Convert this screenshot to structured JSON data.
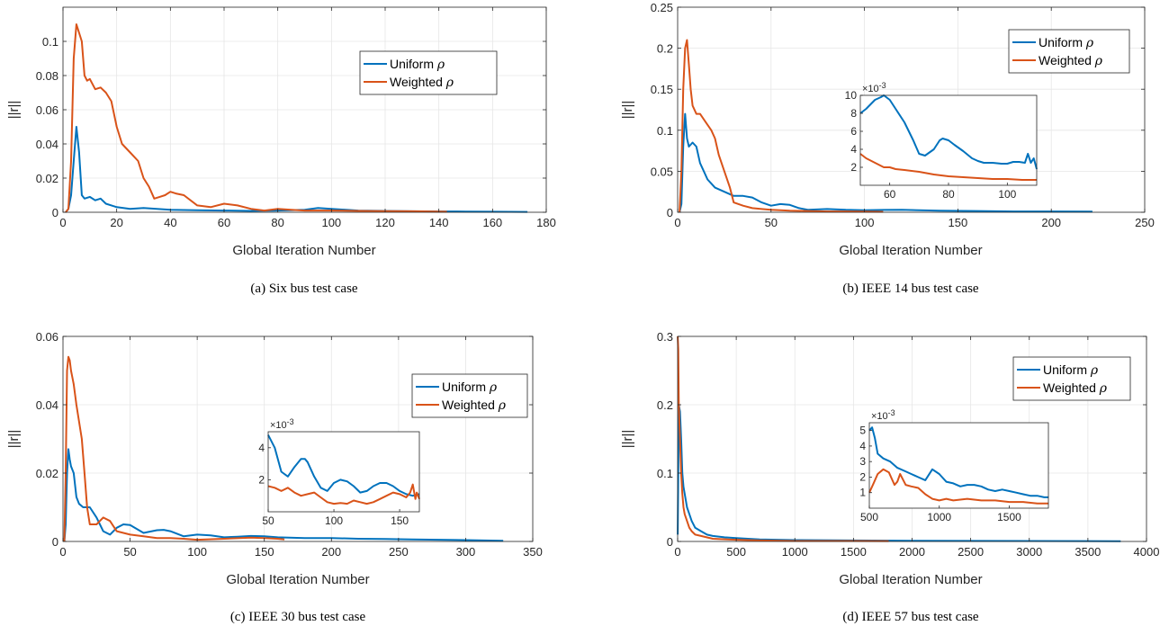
{
  "colors": {
    "uniform": "#0072BD",
    "weighted": "#D95319"
  },
  "chart_data": [
    {
      "type": "line",
      "caption": "(a) Six bus test case",
      "xlabel": "Global Iteration Number",
      "ylabel": "||r||",
      "xlim": [
        0,
        180
      ],
      "ylim": [
        0,
        0.12
      ],
      "xticks": [
        "0",
        "20",
        "40",
        "60",
        "80",
        "100",
        "120",
        "140",
        "160",
        "180"
      ],
      "yticks": [
        "0",
        "0.02",
        "0.04",
        "0.06",
        "0.08",
        "0.1"
      ],
      "legend": [
        "Uniform ρ",
        "Weighted ρ"
      ],
      "legend_position": "upper-right",
      "grid": true,
      "series": [
        {
          "name": "Uniform ρ",
          "x": [
            1,
            2,
            3,
            4,
            5,
            6,
            7,
            8,
            10,
            12,
            14,
            16,
            20,
            25,
            30,
            35,
            40,
            50,
            60,
            70,
            80,
            90,
            95,
            100,
            110,
            120,
            130,
            140,
            150,
            160,
            173
          ],
          "y": [
            0,
            0.002,
            0.01,
            0.03,
            0.05,
            0.035,
            0.01,
            0.008,
            0.009,
            0.007,
            0.008,
            0.005,
            0.003,
            0.002,
            0.0025,
            0.002,
            0.0015,
            0.0012,
            0.001,
            0.0008,
            0.001,
            0.0015,
            0.0025,
            0.002,
            0.001,
            0.0008,
            0.0006,
            0.0005,
            0.0004,
            0.0003,
            0.0002
          ]
        },
        {
          "name": "Weighted ρ",
          "x": [
            1,
            2,
            3,
            4,
            5,
            6,
            7,
            8,
            9,
            10,
            12,
            14,
            16,
            18,
            20,
            22,
            25,
            28,
            30,
            32,
            34,
            36,
            38,
            40,
            42,
            45,
            50,
            55,
            60,
            65,
            70,
            75,
            80,
            85,
            90,
            100,
            110,
            120,
            130,
            140,
            143
          ],
          "y": [
            0,
            0.002,
            0.03,
            0.09,
            0.11,
            0.105,
            0.1,
            0.08,
            0.077,
            0.078,
            0.072,
            0.073,
            0.07,
            0.065,
            0.05,
            0.04,
            0.035,
            0.03,
            0.02,
            0.015,
            0.008,
            0.009,
            0.01,
            0.012,
            0.011,
            0.01,
            0.004,
            0.003,
            0.005,
            0.004,
            0.002,
            0.001,
            0.002,
            0.0015,
            0.001,
            0.001,
            0.0008,
            0.0007,
            0.0006,
            0.0004,
            0.0003
          ]
        }
      ]
    },
    {
      "type": "line",
      "caption": "(b) IEEE 14 bus test case",
      "xlabel": "Global Iteration Number",
      "ylabel": "||r||",
      "xlim": [
        0,
        250
      ],
      "ylim": [
        0,
        0.25
      ],
      "xticks": [
        "0",
        "50",
        "100",
        "150",
        "200",
        "250"
      ],
      "yticks": [
        "0",
        "0.05",
        "0.1",
        "0.15",
        "0.2",
        "0.25"
      ],
      "legend": [
        "Uniform ρ",
        "Weighted ρ"
      ],
      "legend_position": "upper-right",
      "grid": true,
      "series": [
        {
          "name": "Uniform ρ",
          "x": [
            1,
            2,
            3,
            4,
            5,
            6,
            8,
            10,
            12,
            14,
            16,
            18,
            20,
            25,
            30,
            35,
            40,
            45,
            50,
            55,
            60,
            65,
            70,
            80,
            90,
            100,
            110,
            120,
            140,
            160,
            180,
            200,
            222
          ],
          "y": [
            0,
            0.01,
            0.08,
            0.12,
            0.09,
            0.08,
            0.085,
            0.08,
            0.06,
            0.05,
            0.04,
            0.035,
            0.03,
            0.025,
            0.02,
            0.02,
            0.018,
            0.012,
            0.008,
            0.01,
            0.009,
            0.005,
            0.003,
            0.004,
            0.003,
            0.0025,
            0.0028,
            0.003,
            0.002,
            0.0015,
            0.001,
            0.001,
            0.0008
          ]
        },
        {
          "name": "Weighted ρ",
          "x": [
            1,
            2,
            3,
            4,
            5,
            6,
            7,
            8,
            10,
            12,
            15,
            18,
            20,
            22,
            25,
            28,
            30,
            35,
            40,
            45,
            50,
            55,
            60,
            70,
            80,
            90,
            100,
            110
          ],
          "y": [
            0,
            0.05,
            0.15,
            0.2,
            0.21,
            0.18,
            0.15,
            0.13,
            0.12,
            0.12,
            0.11,
            0.1,
            0.09,
            0.07,
            0.05,
            0.03,
            0.012,
            0.008,
            0.005,
            0.004,
            0.003,
            0.0025,
            0.002,
            0.0015,
            0.001,
            0.001,
            0.0008,
            0.0006
          ]
        }
      ],
      "inset": {
        "xlim": [
          50,
          110
        ],
        "ylim": [
          0,
          10
        ],
        "exponent": "×10-3",
        "xticks": [
          "60",
          "80",
          "100"
        ],
        "yticks": [
          "2",
          "4",
          "6",
          "8",
          "10"
        ],
        "series": [
          {
            "name": "Uniform ρ",
            "x": [
              50,
              52,
              55,
              57,
              58,
              60,
              62,
              65,
              68,
              70,
              72,
              75,
              77,
              78,
              80,
              82,
              85,
              88,
              90,
              92,
              95,
              98,
              100,
              102,
              104,
              106,
              107,
              108,
              109,
              110
            ],
            "y": [
              8,
              8.5,
              9.5,
              9.8,
              10,
              9.5,
              8.5,
              7,
              5,
              3.5,
              3.3,
              4,
              5,
              5.2,
              5,
              4.5,
              3.8,
              3,
              2.7,
              2.5,
              2.5,
              2.4,
              2.4,
              2.6,
              2.6,
              2.5,
              3.5,
              2.5,
              3,
              1.8
            ]
          },
          {
            "name": "Weighted ρ",
            "x": [
              50,
              52,
              55,
              58,
              60,
              62,
              65,
              70,
              75,
              80,
              85,
              90,
              95,
              100,
              105,
              110
            ],
            "y": [
              3.5,
              3,
              2.5,
              2,
              2,
              1.8,
              1.7,
              1.5,
              1.2,
              1,
              0.9,
              0.8,
              0.7,
              0.7,
              0.6,
              0.6
            ]
          }
        ]
      }
    },
    {
      "type": "line",
      "caption": "(c) IEEE 30 bus test case",
      "xlabel": "Global Iteration Number",
      "ylabel": "||r||",
      "xlim": [
        0,
        350
      ],
      "ylim": [
        0,
        0.06
      ],
      "xticks": [
        "0",
        "50",
        "100",
        "150",
        "200",
        "250",
        "300",
        "350"
      ],
      "yticks": [
        "0",
        "0.02",
        "0.04",
        "0.06"
      ],
      "legend": [
        "Uniform ρ",
        "Weighted ρ"
      ],
      "legend_position": "upper-right",
      "grid": true,
      "series": [
        {
          "name": "Uniform ρ",
          "x": [
            1,
            2,
            3,
            4,
            5,
            6,
            8,
            10,
            12,
            15,
            20,
            25,
            30,
            35,
            40,
            45,
            50,
            60,
            70,
            75,
            80,
            90,
            100,
            110,
            120,
            130,
            140,
            150,
            160,
            180,
            200,
            220,
            240,
            260,
            280,
            300,
            328
          ],
          "y": [
            0,
            0.005,
            0.02,
            0.027,
            0.024,
            0.022,
            0.02,
            0.013,
            0.011,
            0.01,
            0.01,
            0.007,
            0.003,
            0.002,
            0.004,
            0.005,
            0.0048,
            0.0025,
            0.0033,
            0.0034,
            0.003,
            0.0015,
            0.002,
            0.0018,
            0.0012,
            0.0014,
            0.0016,
            0.0015,
            0.0012,
            0.001,
            0.001,
            0.0008,
            0.0007,
            0.0006,
            0.0005,
            0.0004,
            0.0002
          ]
        },
        {
          "name": "Weighted ρ",
          "x": [
            1,
            2,
            3,
            4,
            5,
            6,
            7,
            8,
            10,
            12,
            14,
            16,
            18,
            20,
            25,
            30,
            35,
            40,
            50,
            60,
            70,
            80,
            90,
            100,
            120,
            140,
            150,
            160,
            165
          ],
          "y": [
            0,
            0.02,
            0.05,
            0.054,
            0.053,
            0.05,
            0.048,
            0.046,
            0.04,
            0.035,
            0.03,
            0.02,
            0.01,
            0.005,
            0.005,
            0.007,
            0.006,
            0.003,
            0.002,
            0.0015,
            0.001,
            0.001,
            0.0008,
            0.0005,
            0.0008,
            0.0011,
            0.001,
            0.0008,
            0.0006
          ]
        }
      ],
      "inset": {
        "xlim": [
          50,
          165
        ],
        "ylim": [
          0,
          5
        ],
        "exponent": "×10-3",
        "xticks": [
          "50",
          "100",
          "150"
        ],
        "yticks": [
          "2",
          "4"
        ],
        "series": [
          {
            "name": "Uniform ρ",
            "x": [
              50,
              55,
              60,
              65,
              70,
              75,
              78,
              80,
              85,
              90,
              95,
              100,
              105,
              110,
              115,
              120,
              125,
              130,
              135,
              140,
              145,
              150,
              155,
              160,
              165
            ],
            "y": [
              4.8,
              4,
              2.5,
              2.2,
              2.8,
              3.3,
              3.3,
              3.1,
              2.2,
              1.5,
              1.3,
              1.8,
              2,
              1.9,
              1.6,
              1.2,
              1.3,
              1.6,
              1.8,
              1.8,
              1.6,
              1.3,
              1.1,
              1,
              1.1
            ]
          },
          {
            "name": "Weighted ρ",
            "x": [
              50,
              55,
              60,
              65,
              70,
              75,
              80,
              85,
              90,
              95,
              100,
              105,
              110,
              115,
              120,
              125,
              130,
              135,
              140,
              145,
              150,
              155,
              158,
              160,
              162,
              163,
              165
            ],
            "y": [
              1.6,
              1.5,
              1.3,
              1.5,
              1.2,
              1,
              1.1,
              1.2,
              0.9,
              0.6,
              0.5,
              0.55,
              0.5,
              0.7,
              0.6,
              0.5,
              0.6,
              0.8,
              1,
              1.2,
              1.1,
              0.9,
              1.2,
              1.7,
              0.8,
              1.2,
              0.8
            ]
          }
        ]
      }
    },
    {
      "type": "line",
      "caption": "(d) IEEE 57 bus test case",
      "xlabel": "Global Iteration Number",
      "ylabel": "||r||",
      "xlim": [
        0,
        4000
      ],
      "ylim": [
        0,
        0.3
      ],
      "xticks": [
        "0",
        "500",
        "1000",
        "1500",
        "2000",
        "2500",
        "3000",
        "3500",
        "4000"
      ],
      "yticks": [
        "0",
        "0.1",
        "0.2",
        "0.3"
      ],
      "legend": [
        "Uniform ρ",
        "Weighted ρ"
      ],
      "legend_position": "upper-right",
      "grid": true,
      "series": [
        {
          "name": "Uniform ρ",
          "x": [
            1,
            10,
            20,
            30,
            40,
            50,
            60,
            80,
            100,
            120,
            150,
            200,
            250,
            300,
            400,
            500,
            700,
            1000,
            1500,
            2000,
            2500,
            3000,
            3500,
            3780
          ],
          "y": [
            0.01,
            0.2,
            0.19,
            0.15,
            0.1,
            0.08,
            0.07,
            0.05,
            0.04,
            0.03,
            0.02,
            0.015,
            0.01,
            0.008,
            0.006,
            0.005,
            0.003,
            0.002,
            0.0015,
            0.001,
            0.0008,
            0.0006,
            0.0005,
            0.0004
          ]
        },
        {
          "name": "Weighted ρ",
          "x": [
            1,
            5,
            10,
            20,
            30,
            40,
            50,
            60,
            80,
            100,
            120,
            150,
            200,
            300,
            500,
            700,
            1000,
            1300,
            1500,
            1800
          ],
          "y": [
            0.3,
            0.28,
            0.2,
            0.15,
            0.1,
            0.07,
            0.05,
            0.04,
            0.03,
            0.02,
            0.015,
            0.01,
            0.008,
            0.004,
            0.0025,
            0.0015,
            0.0007,
            0.0006,
            0.0006,
            0.0005
          ]
        }
      ],
      "inset": {
        "xlim": [
          500,
          1780
        ],
        "ylim": [
          0,
          5.5
        ],
        "exponent": "×10-3",
        "xticks": [
          "500",
          "1000",
          "1500"
        ],
        "yticks": [
          "1",
          "2",
          "3",
          "4",
          "5"
        ],
        "series": [
          {
            "name": "Uniform ρ",
            "x": [
              500,
              520,
              540,
              560,
              600,
              650,
              700,
              750,
              800,
              850,
              900,
              950,
              1000,
              1050,
              1100,
              1150,
              1200,
              1250,
              1300,
              1350,
              1400,
              1450,
              1500,
              1550,
              1600,
              1650,
              1700,
              1750,
              1780
            ],
            "y": [
              5,
              5.2,
              4.5,
              3.5,
              3.2,
              3,
              2.6,
              2.4,
              2.2,
              2,
              1.8,
              2.5,
              2.2,
              1.7,
              1.6,
              1.4,
              1.5,
              1.5,
              1.4,
              1.2,
              1.1,
              1.2,
              1.1,
              1,
              0.9,
              0.8,
              0.8,
              0.7,
              0.7
            ]
          },
          {
            "name": "Weighted ρ",
            "x": [
              500,
              530,
              560,
              600,
              640,
              680,
              700,
              720,
              760,
              800,
              850,
              900,
              950,
              1000,
              1050,
              1100,
              1200,
              1300,
              1400,
              1500,
              1600,
              1700,
              1780
            ],
            "y": [
              1,
              1.6,
              2.2,
              2.5,
              2.3,
              1.5,
              1.7,
              2.2,
              1.5,
              1.4,
              1.3,
              0.9,
              0.6,
              0.5,
              0.6,
              0.5,
              0.6,
              0.5,
              0.5,
              0.4,
              0.4,
              0.3,
              0.3
            ]
          }
        ]
      }
    }
  ]
}
